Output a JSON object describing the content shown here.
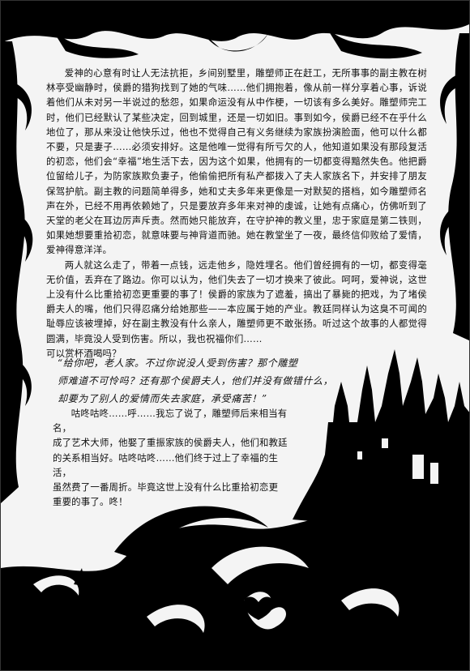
{
  "story": {
    "para1": "爱神的心意有时让人无法抗拒，乡间别墅里，雕塑师正在赶工，无所事事的副主教在树林亭受幽静时，侯爵的猎狗找到了她的气味……他们拥抱着，像从前一样分享着心事，诉说着他们从未对另一半说过的愁怨，如果命运没有从中作梗，一切该有多么美好。雕塑师完工时，他们已经默认了某些决定，回到城里，还是一切如旧。事到如今，侯爵已经不在乎什么地位了，那从来没让他快乐过，他也不觉得自己有义务继续为家族扮演脸面，他可以什么都不要，只是妻子……必须安排好。这是他唯一觉得有所亏欠的人，他知道如果没有那段复活的初恋，他们会“幸福”地生活下去，因为这个如果，他拥有的一切都变得黯然失色。他把爵位留给儿子，为防家族欺负妻子，他偷偷把所有私产都拨入了夫人家族名下，并安排了朋友保驾护航。副主教的问题简单得多，她和丈夫多年来更像是一对默契的搭档，如今雕塑师名声在外，已经不用再依赖她了，只是要放弃多年来对神的虔诚，让她有点痛心，仿佛听到了天堂的老父在耳边厉声斥责。然而她只能放弃，在守护神的教义里，忠于家庭是第二铁则，如果她想要重拾初恋，就意味要与神背道而驰。她在教堂坐了一夜，最终信仰败给了爱情，爱神得意洋洋。",
    "para2": "两人就这么走了，带着一点钱，远走他乡，隐姓埋名。他们曾经拥有的一切，都变得毫无价值，丢弃在了路边。你可以认为，他们失去了一切才换来了彼此。呵呵，爱神说，这世上没有什么比重拾初恋更重要的事了！侯爵的家族为了遮羞，搞出了暴毙的把戏，为了堵侯爵夫人的嘴，他们只得忍痛分给她那些——本应属于她的产业。教廷同样认为这臭不可闻的耻辱应该被埋掉，好在副主教没有什么亲人，雕塑师更不敢张扬。听过这个故事的人都觉得圆满，毕竟没人受到伤害。所以，我也祝福你们……",
    "para2_tail": "可以赏杯酒喝吗？",
    "quote_line1": "“给你吧，老人家。不过你说没人受到伤害？那个雕塑",
    "quote_line2": "师难道不可怜吗？还有那个侯爵夫人，他们并没有做错什么，",
    "quote_line3": "却要为了别人的爱情而失去家庭，承受痛苦！”",
    "end_line1": "咕咚咕咚……呼……我忘了说了，雕塑师后来相当有名，",
    "end_line2": "成了艺术大师，他娶了重振家族的侯爵夫人，他们和教廷",
    "end_line3": "的关系相当好。咕咚咕咚……他们终于过上了幸福的生活，",
    "end_line4": "虽然费了一番周折。毕竟这世上没有什么比重拾初恋更",
    "end_line5": "重要的事了。咚！"
  },
  "art": {
    "ink": "#000000",
    "paper": "#f4f4f4",
    "frame_motif": "ornamental-vine-border",
    "scene": "castle-on-hill-silhouette"
  }
}
